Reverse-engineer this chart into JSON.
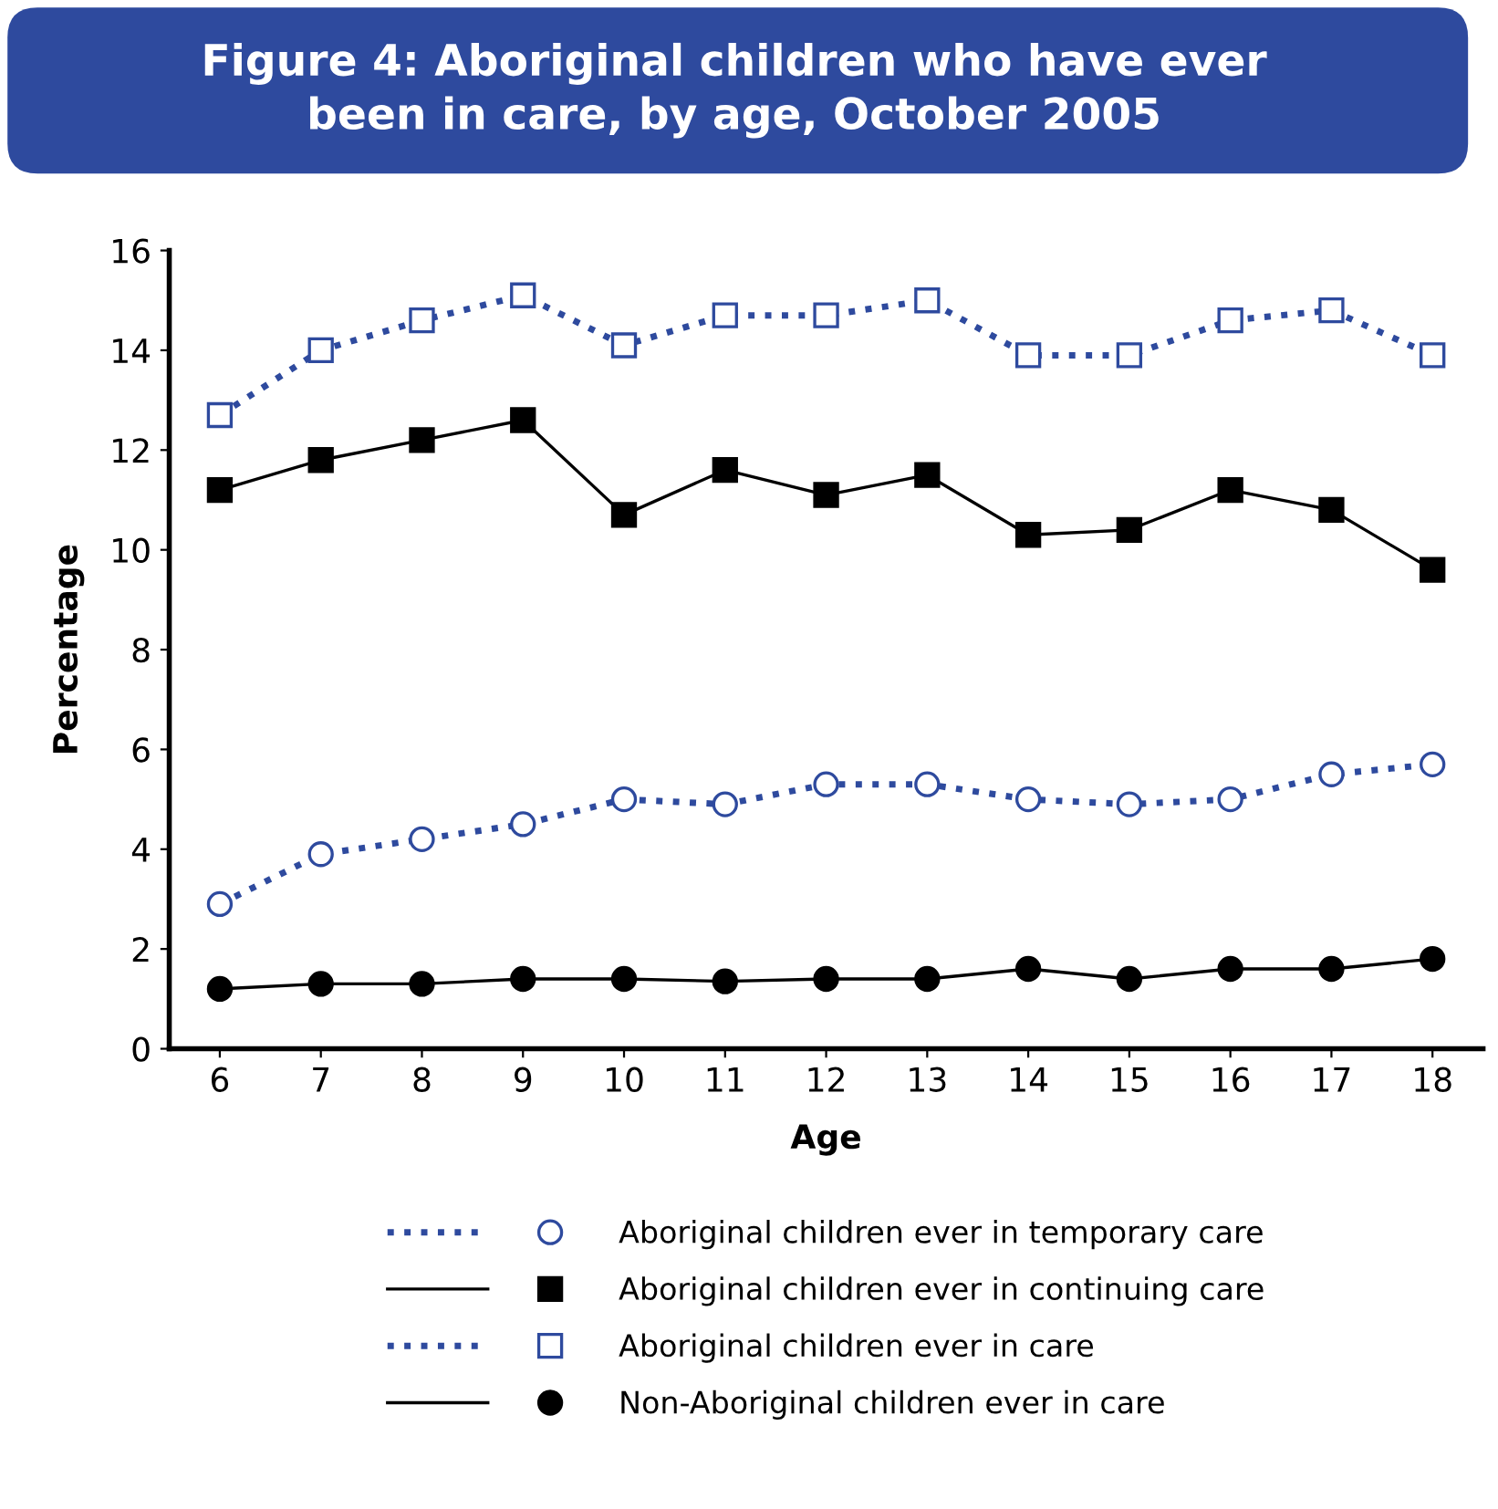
{
  "chart_data": {
    "type": "line",
    "title": "Figure 4: Aboriginal children who have ever\nbeen in care, by age, October 2005",
    "xlabel": "Age",
    "ylabel": "Percentage",
    "categories": [
      "6",
      "7",
      "8",
      "9",
      "10",
      "11",
      "12",
      "13",
      "14",
      "15",
      "16",
      "17",
      "18"
    ],
    "ylim": [
      0,
      16
    ],
    "yticks": [
      0,
      2,
      4,
      6,
      8,
      10,
      12,
      14,
      16
    ],
    "grid": false,
    "legend": "bottom",
    "series": [
      {
        "name": "Aboriginal children ever in temporary care",
        "color": "#2e4a9e",
        "marker": "circle",
        "line_style": "dotted",
        "values": [
          2.9,
          3.9,
          4.2,
          4.5,
          5.0,
          4.9,
          5.3,
          5.3,
          5.0,
          4.9,
          5.0,
          5.5,
          5.7
        ]
      },
      {
        "name": "Aboriginal children ever in continuing care",
        "color": "#000000",
        "marker": "square",
        "line_style": "solid",
        "values": [
          11.2,
          11.8,
          12.2,
          12.6,
          10.7,
          11.6,
          11.1,
          11.5,
          10.3,
          10.4,
          11.2,
          10.8,
          9.6
        ]
      },
      {
        "name": "Aboriginal children ever in care",
        "color": "#2e4a9e",
        "marker": "square",
        "line_style": "dotted",
        "values": [
          12.7,
          14.0,
          14.6,
          15.1,
          14.1,
          14.7,
          14.7,
          15.0,
          13.9,
          13.9,
          14.6,
          14.8,
          13.9
        ]
      },
      {
        "name": "Non-Aboriginal children ever in care",
        "color": "#000000",
        "marker": "circle",
        "line_style": "solid",
        "values": [
          1.2,
          1.3,
          1.3,
          1.4,
          1.4,
          1.35,
          1.4,
          1.4,
          1.6,
          1.4,
          1.6,
          1.6,
          1.8
        ]
      }
    ]
  }
}
